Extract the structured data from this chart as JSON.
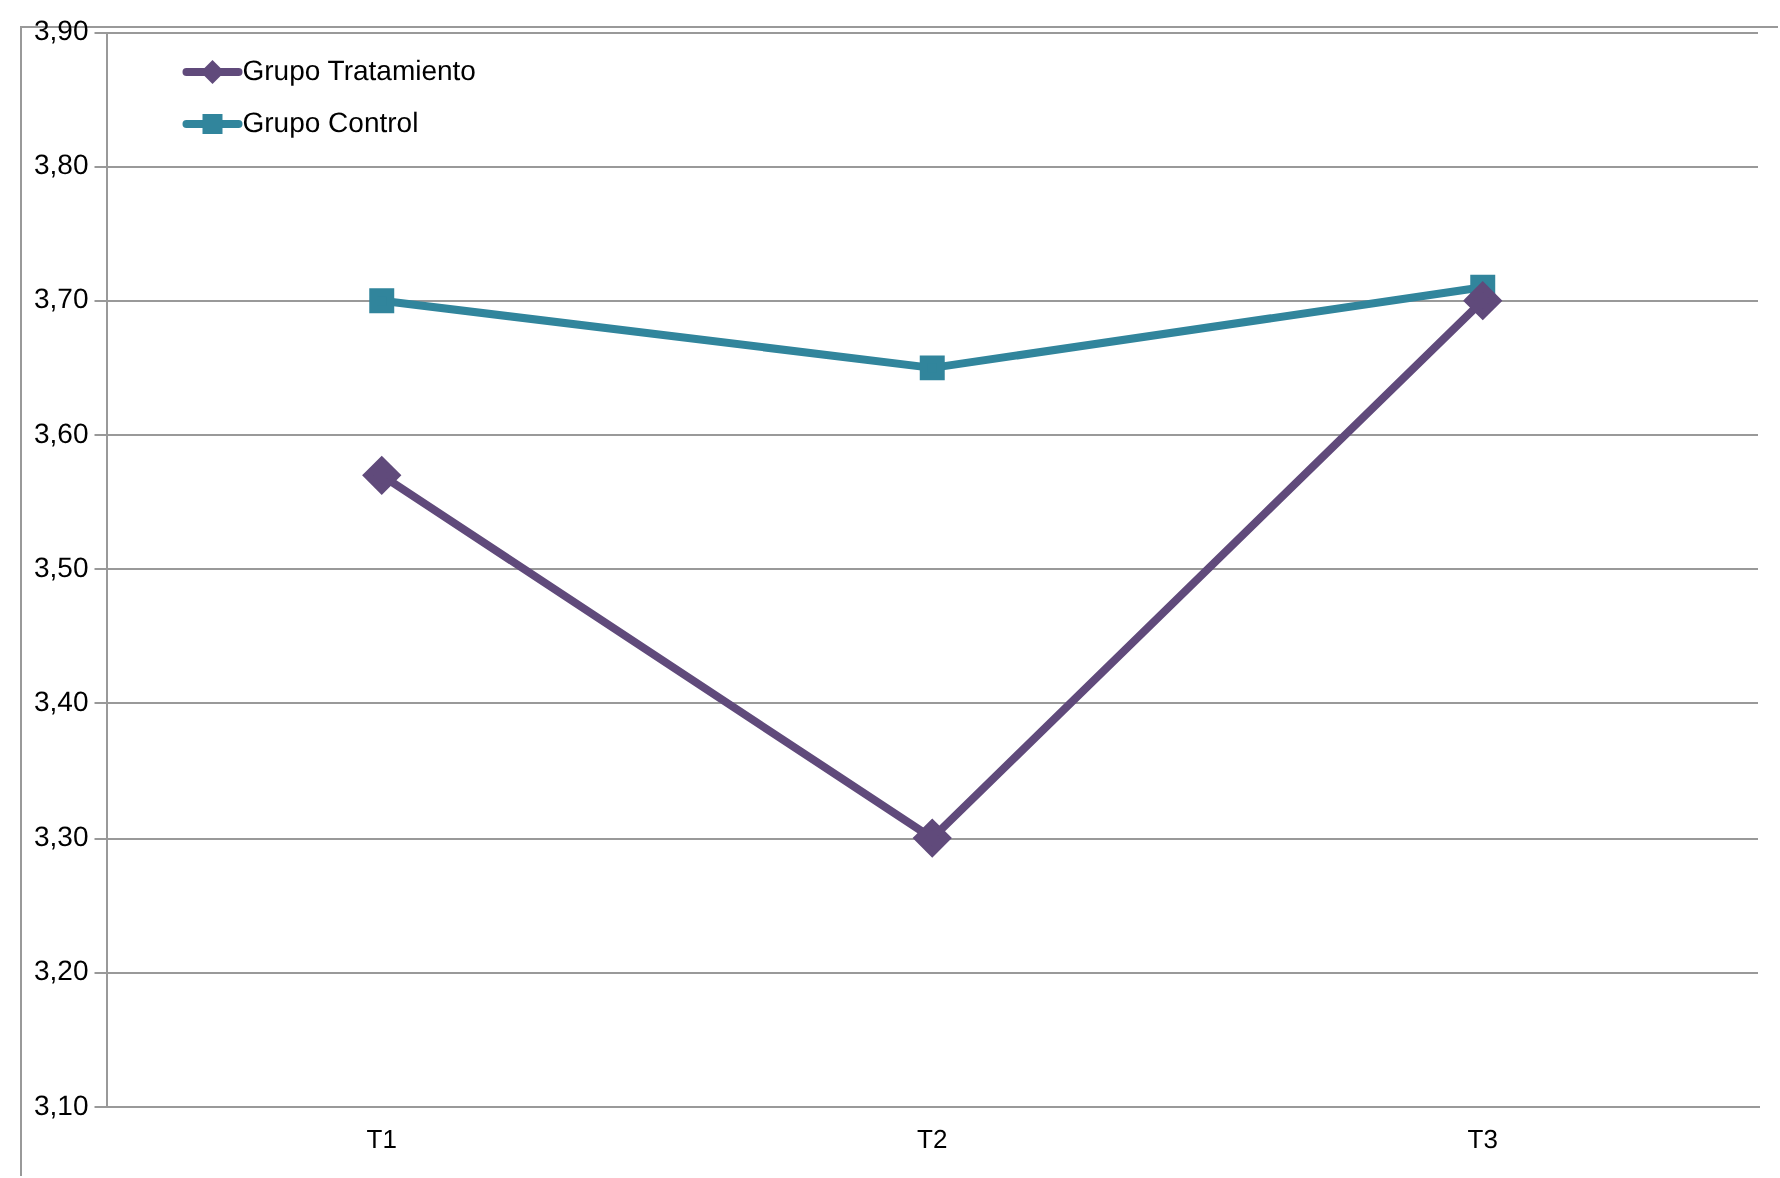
{
  "chart_data": {
    "type": "line",
    "categories": [
      "T1",
      "T2",
      "T3"
    ],
    "series": [
      {
        "name": "Grupo Tratamiento",
        "color": "#604a7b",
        "marker": "diamond",
        "values": [
          3.57,
          3.3,
          3.7
        ]
      },
      {
        "name": "Grupo Control",
        "color": "#31859c",
        "marker": "square",
        "values": [
          3.7,
          3.65,
          3.71
        ]
      }
    ],
    "ylim": [
      3.1,
      3.9
    ],
    "yticks": [
      {
        "value": 3.1,
        "label": "3,10"
      },
      {
        "value": 3.2,
        "label": "3,20"
      },
      {
        "value": 3.3,
        "label": "3,30"
      },
      {
        "value": 3.4,
        "label": "3,40"
      },
      {
        "value": 3.5,
        "label": "3,50"
      },
      {
        "value": 3.6,
        "label": "3,60"
      },
      {
        "value": 3.7,
        "label": "3,70"
      },
      {
        "value": 3.8,
        "label": "3,80"
      },
      {
        "value": 3.9,
        "label": "3,90"
      }
    ],
    "grid": "y",
    "legend": "top left"
  }
}
